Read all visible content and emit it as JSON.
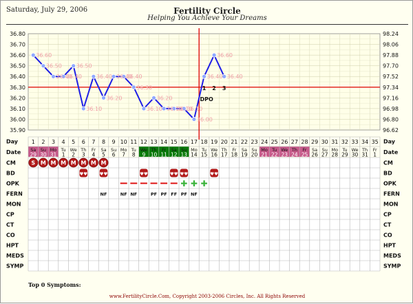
{
  "header": {
    "date": "Saturday, July 29, 2006",
    "title": "Fertility Circle",
    "tagline": "Helping You Achieve Your Dreams"
  },
  "footer": {
    "text": "www.FertilityCircle.Com, Copyright 2003-2006 Circles, Inc. All Rights Reserved"
  },
  "symptoms_label": "Top 0 Symptoms:",
  "colors": {
    "temp_line": "#1e1ee6",
    "temp_point": "#8fa8ff",
    "temp_label": "#f0a0a8",
    "coverline": "#dd0000",
    "ovulation_line": "#dd0000",
    "grid": "#b7b7b7",
    "fertile_window": "#0a7a0a",
    "period_days": "#c75a8a",
    "cm_marker": "#b11a1a",
    "bd_marker": "#b11a1a",
    "opk_negative": "#dd1111",
    "opk_positive": "#3cb43c",
    "chart_bg": "#ffffe8"
  },
  "chart_data": {
    "type": "line",
    "title": "",
    "ylabel_left_unit": "°C",
    "ylabel_right_unit": "°F",
    "ylim_c": [
      35.9,
      36.8
    ],
    "ylim_f": [
      96.62,
      98.24
    ],
    "yticks_left": [
      "36.80",
      "36.70",
      "36.60",
      "36.50",
      "36.40",
      "36.30",
      "36.20",
      "36.10",
      "36.00",
      "35.90"
    ],
    "yticks_right": [
      "98.24",
      "98.06",
      "97.88",
      "97.70",
      "97.52",
      "97.34",
      "97.16",
      "96.98",
      "96.80",
      "96.62"
    ],
    "x": [
      1,
      2,
      3,
      4,
      5,
      6,
      7,
      8,
      9,
      10,
      11,
      12,
      13,
      14,
      15,
      16,
      17,
      18,
      19,
      20
    ],
    "series": [
      {
        "values": [
          36.6,
          36.5,
          36.4,
          36.4,
          36.5,
          36.1,
          36.4,
          36.2,
          36.4,
          36.4,
          36.3,
          36.1,
          36.2,
          36.1,
          36.1,
          36.1,
          36.0,
          36.4,
          36.6,
          36.4
        ],
        "point_labels": [
          "36.60",
          "36.50",
          "36.40",
          "36.40",
          "36.50",
          "36.10",
          "36.40",
          "36.20",
          "36.40",
          "36.40",
          "36.30",
          "36.10",
          "36.20",
          "36.10",
          "36.10",
          "36.10",
          "36.00",
          "36.40",
          "36.60",
          "36.40"
        ]
      }
    ],
    "coverline": 36.3,
    "ovulation_day": 17,
    "dpo_markers": [
      {
        "day": 18,
        "label": "1"
      },
      {
        "day": 19,
        "label": "2"
      },
      {
        "day": 20,
        "label": "3"
      }
    ],
    "dpo_text": "DPO",
    "grid": true,
    "legend": "none"
  },
  "table": {
    "row_labels": [
      "Day",
      "Date",
      "CM",
      "BD",
      "OPK",
      "FERN",
      "MON",
      "CP",
      "CT",
      "CO",
      "HPT",
      "MEDS",
      "SYMP"
    ],
    "days": [
      "1",
      "2",
      "3",
      "4",
      "5",
      "6",
      "7",
      "8",
      "9",
      "10",
      "11",
      "12",
      "13",
      "14",
      "15",
      "16",
      "17",
      "18",
      "19",
      "20",
      "21",
      "22",
      "23",
      "24",
      "25",
      "26",
      "27",
      "28",
      "29",
      "30",
      "31",
      "32",
      "33",
      "34",
      "35"
    ],
    "weekdays": [
      "Sa",
      "Su",
      "Mo",
      "Tu",
      "We",
      "Th",
      "Fr",
      "Sa",
      "Su",
      "Mo",
      "Tu",
      "We",
      "Th",
      "Fr",
      "Sa",
      "Su",
      "Mo",
      "Tu",
      "We",
      "Th",
      "Fr",
      "Sa",
      "Su",
      "Mo",
      "Tu",
      "We",
      "Th",
      "Fr",
      "Sa",
      "Su",
      "Mo",
      "Tu",
      "We",
      "Th",
      "Fr"
    ],
    "dates": [
      "29",
      "30",
      "31",
      "1",
      "2",
      "3",
      "4",
      "5",
      "6",
      "7",
      "8",
      "9",
      "10",
      "11",
      "12",
      "13",
      "14",
      "15",
      "16",
      "17",
      "18",
      "19",
      "20",
      "21",
      "22",
      "23",
      "24",
      "25",
      "26",
      "27",
      "28",
      "29",
      "30",
      "31",
      "1"
    ],
    "fertile_days": [
      12,
      13,
      14,
      15,
      16
    ],
    "period_days": [
      1,
      2,
      3,
      24,
      25,
      26,
      27,
      28
    ],
    "cm": {
      "1": "S",
      "2": "M",
      "3": "M",
      "4": "M",
      "5": "M",
      "6": "M",
      "7": "M",
      "8": "M"
    },
    "bd_days": [
      6,
      8,
      12,
      15,
      16,
      19
    ],
    "bd_glyph": "♥♥",
    "opk": {
      "10": "neg",
      "11": "neg",
      "12": "neg",
      "13": "neg",
      "14": "neg",
      "15": "neg",
      "16": "pos",
      "17": "pos",
      "18": "pos"
    },
    "opk_pos_glyph": "✚",
    "fern": {
      "8": "NF",
      "10": "NF",
      "11": "NF",
      "13": "PF",
      "14": "PF",
      "15": "FF",
      "16": "PF",
      "17": "NF"
    }
  }
}
